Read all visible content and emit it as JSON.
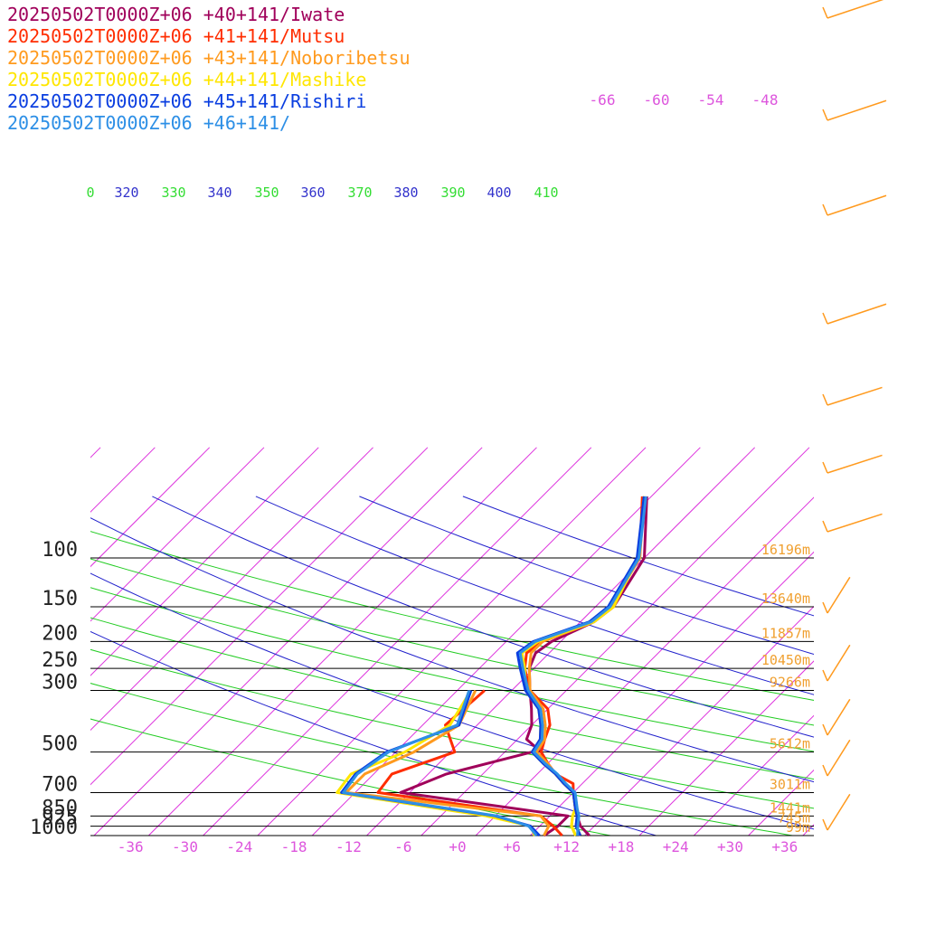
{
  "chart_data": {
    "type": "line",
    "title": "",
    "xlabel": "",
    "ylabel": "",
    "xlim": [
      -40,
      40
    ],
    "y_scale": "log-pressure",
    "ylim": [
      1000,
      100
    ],
    "pressure_levels": [
      100,
      150,
      200,
      250,
      300,
      500,
      700,
      850,
      925,
      1000
    ],
    "heights": [
      {
        "p": 100,
        "label": "16196m"
      },
      {
        "p": 150,
        "label": "13640m"
      },
      {
        "p": 200,
        "label": "11857m"
      },
      {
        "p": 250,
        "label": "10450m"
      },
      {
        "p": 300,
        "label": "9266m"
      },
      {
        "p": 500,
        "label": "5612m"
      },
      {
        "p": 700,
        "label": "3011m"
      },
      {
        "p": 850,
        "label": "1441m"
      },
      {
        "p": 925,
        "label": "745m"
      },
      {
        "p": 1000,
        "label": "99m"
      }
    ],
    "x_ticks": [
      "-36",
      "-30",
      "-24",
      "-18",
      "-12",
      "-6",
      "+0",
      "+6",
      "+12",
      "+18",
      "+24",
      "+30",
      "+36"
    ],
    "x_tick_values": [
      -36,
      -30,
      -24,
      -18,
      -12,
      -6,
      0,
      6,
      12,
      18,
      24,
      30,
      36
    ],
    "isotherm_labels": [
      "-66",
      "-60",
      "-54",
      "-48"
    ],
    "theta_labels": [
      "0",
      "320",
      "330",
      "340",
      "350",
      "360",
      "370",
      "380",
      "390",
      "400",
      "410"
    ],
    "series": [
      {
        "name": "20250502T0000Z+06 +40+141/Iwate",
        "color": "#a0005a",
        "temperature": [
          [
            -16.5,
            60
          ],
          [
            -10,
            100
          ],
          [
            -8,
            150
          ],
          [
            -8.5,
            170
          ],
          [
            -11,
            200
          ],
          [
            -11.5,
            220
          ],
          [
            -10.5,
            250
          ],
          [
            -8,
            300
          ],
          [
            -5.8,
            350
          ],
          [
            -4,
            400
          ],
          [
            -3,
            450
          ],
          [
            0,
            500
          ],
          [
            2,
            550
          ],
          [
            4,
            600
          ],
          [
            6,
            650
          ],
          [
            8,
            700
          ],
          [
            10,
            800
          ],
          [
            11,
            850
          ],
          [
            12.5,
            925
          ],
          [
            14.5,
            1000
          ]
        ],
        "dewpoint": [
          [
            -1,
            500
          ],
          [
            -8,
            600
          ],
          [
            -11,
            700
          ],
          [
            10,
            850
          ],
          [
            10,
            925
          ],
          [
            9.5,
            1000
          ]
        ]
      },
      {
        "name": "20250502T0000Z+06 +41+141/Mutsu",
        "color": "#ff2d00",
        "temperature": [
          [
            -17,
            60
          ],
          [
            -10.5,
            100
          ],
          [
            -8.5,
            150
          ],
          [
            -9,
            170
          ],
          [
            -12,
            200
          ],
          [
            -12.5,
            220
          ],
          [
            -11,
            250
          ],
          [
            -8,
            300
          ],
          [
            -4,
            350
          ],
          [
            -2,
            400
          ],
          [
            -1,
            450
          ],
          [
            0,
            500
          ],
          [
            2,
            550
          ],
          [
            4,
            600
          ],
          [
            7,
            650
          ],
          [
            8,
            700
          ],
          [
            10,
            800
          ],
          [
            11,
            850
          ],
          [
            12,
            925
          ],
          [
            13.5,
            1000
          ]
        ],
        "dewpoint": [
          [
            -13,
            300
          ],
          [
            -13.5,
            400
          ],
          [
            -9.5,
            500
          ],
          [
            -14,
            600
          ],
          [
            -13.5,
            700
          ],
          [
            7,
            850
          ],
          [
            9.5,
            925
          ],
          [
            11.5,
            1000
          ]
        ]
      },
      {
        "name": "20250502T0000Z+06 +43+141/Noboribetsu",
        "color": "#ff9a1e",
        "temperature": [
          [
            -16.8,
            60
          ],
          [
            -10.5,
            100
          ],
          [
            -8.3,
            150
          ],
          [
            -8.5,
            170
          ],
          [
            -12,
            200
          ],
          [
            -12,
            220
          ],
          [
            -10.5,
            250
          ],
          [
            -8,
            300
          ],
          [
            -4.5,
            350
          ],
          [
            -2.5,
            400
          ],
          [
            -1,
            450
          ],
          [
            -0.5,
            500
          ],
          [
            2,
            550
          ],
          [
            4,
            600
          ],
          [
            6,
            650
          ],
          [
            8,
            700
          ],
          [
            10,
            800
          ],
          [
            10.5,
            850
          ],
          [
            11.5,
            925
          ],
          [
            13,
            1000
          ]
        ],
        "dewpoint": [
          [
            -14,
            300
          ],
          [
            -12,
            400
          ],
          [
            -14,
            500
          ],
          [
            -17,
            600
          ],
          [
            -17,
            700
          ],
          [
            7,
            850
          ],
          [
            9,
            925
          ],
          [
            9.5,
            1000
          ]
        ]
      },
      {
        "name": "20250502T0000Z+06 +44+141/Mashike",
        "color": "#ffe600",
        "temperature": [
          [
            -16.8,
            60
          ],
          [
            -10.7,
            100
          ],
          [
            -8,
            150
          ],
          [
            -8.5,
            170
          ],
          [
            -12.5,
            200
          ],
          [
            -13,
            220
          ],
          [
            -11,
            250
          ],
          [
            -8.5,
            300
          ],
          [
            -5,
            350
          ],
          [
            -3,
            400
          ],
          [
            -1.5,
            450
          ],
          [
            -1,
            500
          ],
          [
            1.5,
            550
          ],
          [
            4,
            600
          ],
          [
            6,
            650
          ],
          [
            8,
            700
          ],
          [
            10,
            800
          ],
          [
            10.5,
            850
          ],
          [
            11.5,
            925
          ],
          [
            13,
            1000
          ]
        ],
        "dewpoint": [
          [
            -14.5,
            300
          ],
          [
            -13,
            400
          ],
          [
            -15,
            500
          ],
          [
            -18.5,
            600
          ],
          [
            -18,
            700
          ],
          [
            1,
            850
          ],
          [
            7,
            925
          ],
          [
            8.5,
            1000
          ]
        ]
      },
      {
        "name": "20250502T0000Z+06 +45+141/Rishiri",
        "color": "#0a3ee0",
        "temperature": [
          [
            -16.8,
            60
          ],
          [
            -10.8,
            100
          ],
          [
            -8.6,
            150
          ],
          [
            -9,
            170
          ],
          [
            -13,
            200
          ],
          [
            -13.5,
            220
          ],
          [
            -11.5,
            250
          ],
          [
            -8.5,
            300
          ],
          [
            -5,
            350
          ],
          [
            -3,
            400
          ],
          [
            -1.5,
            450
          ],
          [
            -1,
            500
          ],
          [
            1.5,
            550
          ],
          [
            4,
            600
          ],
          [
            6,
            650
          ],
          [
            8,
            700
          ],
          [
            10,
            800
          ],
          [
            11,
            850
          ],
          [
            12,
            925
          ],
          [
            13.5,
            1000
          ]
        ],
        "dewpoint": [
          [
            -14.5,
            300
          ],
          [
            -12,
            400
          ],
          [
            -17,
            500
          ],
          [
            -18,
            600
          ],
          [
            -17.5,
            700
          ],
          [
            2,
            850
          ],
          [
            7,
            925
          ],
          [
            9,
            1000
          ]
        ]
      },
      {
        "name": "20250502T0000Z+06 +46+141/",
        "color": "#2d8fe6",
        "temperature": [
          [
            -16.6,
            60
          ],
          [
            -10.6,
            100
          ],
          [
            -8.4,
            150
          ],
          [
            -8.8,
            170
          ],
          [
            -12.8,
            200
          ],
          [
            -13.2,
            220
          ],
          [
            -11.2,
            250
          ],
          [
            -8.2,
            300
          ],
          [
            -4.8,
            350
          ],
          [
            -2.8,
            400
          ],
          [
            -1.3,
            450
          ],
          [
            -0.8,
            500
          ],
          [
            1.7,
            550
          ],
          [
            4.2,
            600
          ],
          [
            6.2,
            650
          ],
          [
            8.2,
            700
          ],
          [
            10.2,
            800
          ],
          [
            11.2,
            850
          ],
          [
            12.2,
            925
          ],
          [
            13.2,
            1000
          ]
        ],
        "dewpoint": [
          [
            -14.7,
            300
          ],
          [
            -12.2,
            400
          ],
          [
            -16.8,
            500
          ],
          [
            -17.8,
            600
          ],
          [
            -17.3,
            700
          ],
          [
            2.2,
            850
          ],
          [
            6.8,
            925
          ],
          [
            8.7,
            1000
          ]
        ]
      }
    ],
    "wind_barbs_color": "#ff9a1e",
    "colors": {
      "isotherm": "#dd33dd",
      "dry_adiabat": "#22cc22",
      "pseudo_adiabat": "#2222cc",
      "isobar": "#000000",
      "height_label": "#f0a030",
      "tick_label": "#dd55dd"
    }
  }
}
